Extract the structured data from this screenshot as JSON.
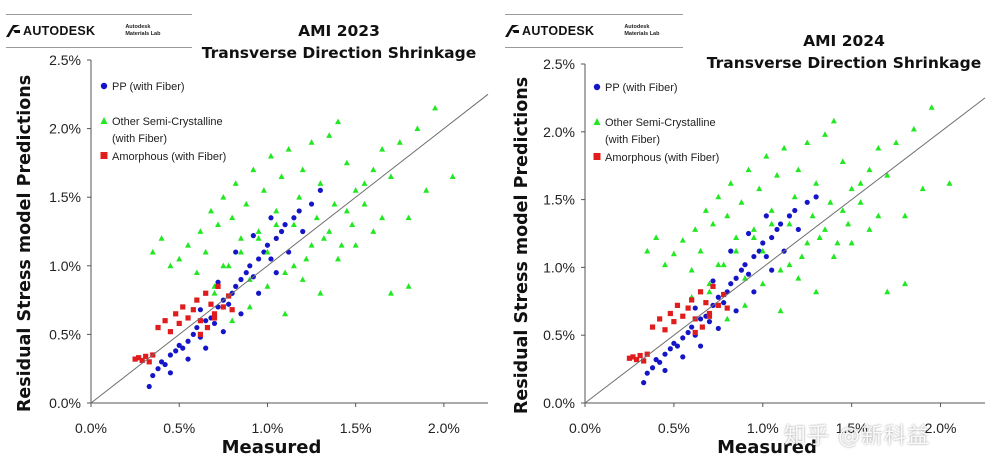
{
  "logo": {
    "brand": "AUTODESK",
    "sub_line1": "Autodesk",
    "sub_line2": "Materials Lab"
  },
  "watermark": "知乎 @新科益",
  "colors": {
    "pp": "#1515c8",
    "semi": "#22e822",
    "amorph": "#e01c1c",
    "diag": "#6e6e6e",
    "axis": "#555555"
  },
  "chart_data": [
    {
      "type": "scatter",
      "title": "AMI 2023",
      "subtitle": "Transverse Direction Shrinkage",
      "xlabel": "Measured",
      "ylabel": "Residual Stress model Predictions",
      "xlim": [
        0,
        2.25
      ],
      "ylim": [
        0,
        2.5
      ],
      "xticks": [
        0,
        0.5,
        1.0,
        1.5,
        2.0
      ],
      "xtick_labels": [
        "0.0%",
        "0.5%",
        "1.0%",
        "1.5%",
        "2.0%"
      ],
      "yticks": [
        0,
        0.5,
        1.0,
        1.5,
        2.0,
        2.5
      ],
      "ytick_labels": [
        "0.0%",
        "0.5%",
        "1.0%",
        "1.5%",
        "2.0%",
        "2.5%"
      ],
      "grid": false,
      "reference_line": {
        "label": "y = x",
        "from": [
          0,
          0
        ],
        "to": [
          2.25,
          2.25
        ]
      },
      "legend_position": "top-left",
      "series": [
        {
          "name": "PP (with Fiber)",
          "marker": "circle",
          "color_key": "pp",
          "x": [
            0.33,
            0.35,
            0.38,
            0.4,
            0.42,
            0.45,
            0.48,
            0.5,
            0.52,
            0.55,
            0.58,
            0.6,
            0.62,
            0.65,
            0.68,
            0.7,
            0.72,
            0.75,
            0.78,
            0.8,
            0.82,
            0.85,
            0.88,
            0.9,
            0.92,
            0.95,
            0.98,
            1.0,
            1.02,
            1.05,
            1.08,
            1.1,
            1.12,
            1.15,
            1.18,
            1.2,
            1.25,
            1.3,
            0.45,
            0.55,
            0.65,
            0.75,
            0.85,
            0.95,
            1.05,
            0.62,
            0.72,
            0.82,
            0.92,
            1.02
          ],
          "y": [
            0.12,
            0.2,
            0.25,
            0.3,
            0.28,
            0.35,
            0.38,
            0.42,
            0.4,
            0.45,
            0.5,
            0.55,
            0.48,
            0.6,
            0.62,
            0.58,
            0.7,
            0.75,
            0.72,
            0.8,
            0.85,
            0.9,
            0.95,
            1.0,
            0.92,
            1.05,
            1.1,
            1.15,
            1.05,
            1.2,
            1.25,
            1.3,
            1.1,
            1.35,
            1.4,
            1.25,
            1.45,
            1.55,
            0.22,
            0.32,
            0.4,
            0.52,
            0.65,
            0.8,
            0.95,
            0.68,
            0.88,
            1.1,
            1.22,
            1.35
          ]
        },
        {
          "name": "Other Semi-Crystalline\n(with Fiber)",
          "marker": "triangle",
          "color_key": "semi",
          "x": [
            0.5,
            0.55,
            0.6,
            0.62,
            0.65,
            0.68,
            0.7,
            0.72,
            0.75,
            0.78,
            0.8,
            0.82,
            0.85,
            0.88,
            0.9,
            0.92,
            0.95,
            0.98,
            1.0,
            1.02,
            1.05,
            1.08,
            1.1,
            1.12,
            1.15,
            1.18,
            1.2,
            1.22,
            1.25,
            1.28,
            1.3,
            1.32,
            1.35,
            1.38,
            1.4,
            1.42,
            1.45,
            1.48,
            1.5,
            1.55,
            1.6,
            1.65,
            1.7,
            1.75,
            1.8,
            1.85,
            1.9,
            1.95,
            2.05,
            0.6,
            0.7,
            0.8,
            0.9,
            1.0,
            1.1,
            1.2,
            1.3,
            1.4,
            1.5,
            1.6,
            0.75,
            0.85,
            0.95,
            1.05,
            1.15,
            1.25,
            1.35,
            1.45,
            1.55,
            1.65,
            0.35,
            0.4,
            0.45,
            1.7,
            1.8
          ],
          "y": [
            1.05,
            1.15,
            0.95,
            1.25,
            1.1,
            1.4,
            0.85,
            1.3,
            1.5,
            1.0,
            1.35,
            1.6,
            1.2,
            1.45,
            0.9,
            1.7,
            1.25,
            1.55,
            1.1,
            1.8,
            1.4,
            1.65,
            0.95,
            1.85,
            1.3,
            1.5,
            1.7,
            1.05,
            1.9,
            1.35,
            1.6,
            1.2,
            1.95,
            1.45,
            2.05,
            1.15,
            1.75,
            1.3,
            1.55,
            1.6,
            1.7,
            1.85,
            1.65,
            1.9,
            1.35,
            2.0,
            1.55,
            2.15,
            1.65,
            0.75,
            0.8,
            0.6,
            0.7,
            0.85,
            0.65,
            0.9,
            0.8,
            1.05,
            1.15,
            1.25,
            1.0,
            1.1,
            1.2,
            1.3,
            1.0,
            1.15,
            1.25,
            1.4,
            1.45,
            1.35,
            1.1,
            1.2,
            1.0,
            0.8,
            0.85
          ]
        },
        {
          "name": "Amorphous (with Fiber)",
          "marker": "square",
          "color_key": "amorph",
          "x": [
            0.25,
            0.27,
            0.29,
            0.31,
            0.33,
            0.35,
            0.38,
            0.42,
            0.45,
            0.48,
            0.5,
            0.52,
            0.55,
            0.58,
            0.6,
            0.62,
            0.65,
            0.68,
            0.7,
            0.72,
            0.75,
            0.78,
            0.8,
            0.62,
            0.66,
            0.7
          ],
          "y": [
            0.32,
            0.33,
            0.31,
            0.34,
            0.3,
            0.35,
            0.55,
            0.6,
            0.52,
            0.65,
            0.58,
            0.7,
            0.62,
            0.68,
            0.75,
            0.6,
            0.8,
            0.72,
            0.65,
            0.85,
            0.7,
            0.78,
            0.68,
            0.5,
            0.55,
            0.62
          ]
        }
      ]
    },
    {
      "type": "scatter",
      "title": "AMI 2024",
      "subtitle": "Transverse Direction Shrinkage",
      "xlabel": "Measured",
      "ylabel": "Residual Stress model Predictions",
      "xlim": [
        0,
        2.25
      ],
      "ylim": [
        0,
        2.5
      ],
      "xticks": [
        0,
        0.5,
        1.0,
        1.5,
        2.0
      ],
      "xtick_labels": [
        "0.0%",
        "0.5%",
        "1.0%",
        "1.5%",
        "2.0%"
      ],
      "yticks": [
        0,
        0.5,
        1.0,
        1.5,
        2.0,
        2.5
      ],
      "ytick_labels": [
        "0.0%",
        "0.5%",
        "1.0%",
        "1.5%",
        "2.0%",
        "2.5%"
      ],
      "grid": false,
      "reference_line": {
        "label": "y = x",
        "from": [
          0,
          0
        ],
        "to": [
          2.25,
          2.25
        ]
      },
      "legend_position": "top-left",
      "series": [
        {
          "name": "PP (with Fiber)",
          "marker": "circle",
          "color_key": "pp",
          "x": [
            0.33,
            0.35,
            0.38,
            0.4,
            0.42,
            0.45,
            0.48,
            0.5,
            0.52,
            0.55,
            0.58,
            0.6,
            0.62,
            0.65,
            0.68,
            0.7,
            0.72,
            0.75,
            0.78,
            0.8,
            0.82,
            0.85,
            0.88,
            0.9,
            0.92,
            0.95,
            0.98,
            1.0,
            1.02,
            1.05,
            1.08,
            1.1,
            1.12,
            1.15,
            1.18,
            1.2,
            1.25,
            1.3,
            0.45,
            0.55,
            0.65,
            0.75,
            0.85,
            0.95,
            1.05,
            0.62,
            0.72,
            0.82,
            0.92,
            1.02
          ],
          "y": [
            0.15,
            0.22,
            0.26,
            0.32,
            0.3,
            0.36,
            0.4,
            0.44,
            0.42,
            0.48,
            0.52,
            0.56,
            0.5,
            0.62,
            0.64,
            0.6,
            0.72,
            0.78,
            0.74,
            0.82,
            0.88,
            0.92,
            0.98,
            1.02,
            0.95,
            1.08,
            1.12,
            1.18,
            1.08,
            1.22,
            1.28,
            1.32,
            1.12,
            1.38,
            1.42,
            1.28,
            1.48,
            1.52,
            0.24,
            0.34,
            0.42,
            0.55,
            0.68,
            0.82,
            0.98,
            0.7,
            0.9,
            1.12,
            1.25,
            1.38
          ]
        },
        {
          "name": "Other Semi-Crystalline\n(with Fiber)",
          "marker": "triangle",
          "color_key": "semi",
          "x": [
            0.5,
            0.55,
            0.6,
            0.62,
            0.65,
            0.68,
            0.7,
            0.72,
            0.75,
            0.78,
            0.8,
            0.82,
            0.85,
            0.88,
            0.9,
            0.92,
            0.95,
            0.98,
            1.0,
            1.02,
            1.05,
            1.08,
            1.1,
            1.12,
            1.15,
            1.18,
            1.2,
            1.22,
            1.25,
            1.28,
            1.3,
            1.32,
            1.35,
            1.38,
            1.4,
            1.42,
            1.45,
            1.48,
            1.5,
            1.55,
            1.6,
            1.65,
            1.7,
            1.75,
            1.8,
            1.85,
            1.9,
            1.95,
            2.05,
            0.6,
            0.7,
            0.8,
            0.9,
            1.0,
            1.1,
            1.2,
            1.3,
            1.4,
            1.5,
            1.6,
            0.75,
            0.85,
            0.95,
            1.05,
            1.15,
            1.25,
            1.35,
            1.45,
            1.55,
            1.65,
            0.35,
            0.4,
            0.45,
            1.7,
            1.8
          ],
          "y": [
            1.1,
            1.2,
            0.98,
            1.28,
            1.12,
            1.42,
            0.88,
            1.32,
            1.52,
            1.02,
            1.38,
            1.62,
            1.22,
            1.48,
            0.92,
            1.72,
            1.28,
            1.58,
            1.12,
            1.82,
            1.42,
            1.68,
            0.98,
            1.88,
            1.32,
            1.52,
            1.72,
            1.08,
            1.92,
            1.38,
            1.62,
            1.22,
            1.98,
            1.48,
            2.08,
            1.18,
            1.78,
            1.32,
            1.58,
            1.62,
            1.72,
            1.88,
            1.68,
            1.92,
            1.38,
            2.02,
            1.58,
            2.18,
            1.62,
            0.78,
            0.82,
            0.62,
            0.72,
            0.88,
            0.68,
            0.92,
            0.82,
            1.08,
            1.18,
            1.28,
            1.02,
            1.12,
            1.22,
            1.32,
            1.02,
            1.18,
            1.28,
            1.42,
            1.48,
            1.38,
            1.12,
            1.22,
            1.02,
            0.82,
            0.88
          ]
        },
        {
          "name": "Amorphous (with Fiber)",
          "marker": "square",
          "color_key": "amorph",
          "x": [
            0.25,
            0.27,
            0.29,
            0.31,
            0.33,
            0.35,
            0.38,
            0.42,
            0.45,
            0.48,
            0.5,
            0.52,
            0.55,
            0.58,
            0.6,
            0.62,
            0.65,
            0.68,
            0.7,
            0.72,
            0.75,
            0.78,
            0.8,
            0.62,
            0.66,
            0.7
          ],
          "y": [
            0.33,
            0.34,
            0.32,
            0.35,
            0.31,
            0.36,
            0.56,
            0.62,
            0.54,
            0.66,
            0.6,
            0.72,
            0.64,
            0.7,
            0.76,
            0.62,
            0.82,
            0.74,
            0.66,
            0.86,
            0.72,
            0.8,
            0.7,
            0.52,
            0.56,
            0.64
          ]
        }
      ]
    }
  ]
}
